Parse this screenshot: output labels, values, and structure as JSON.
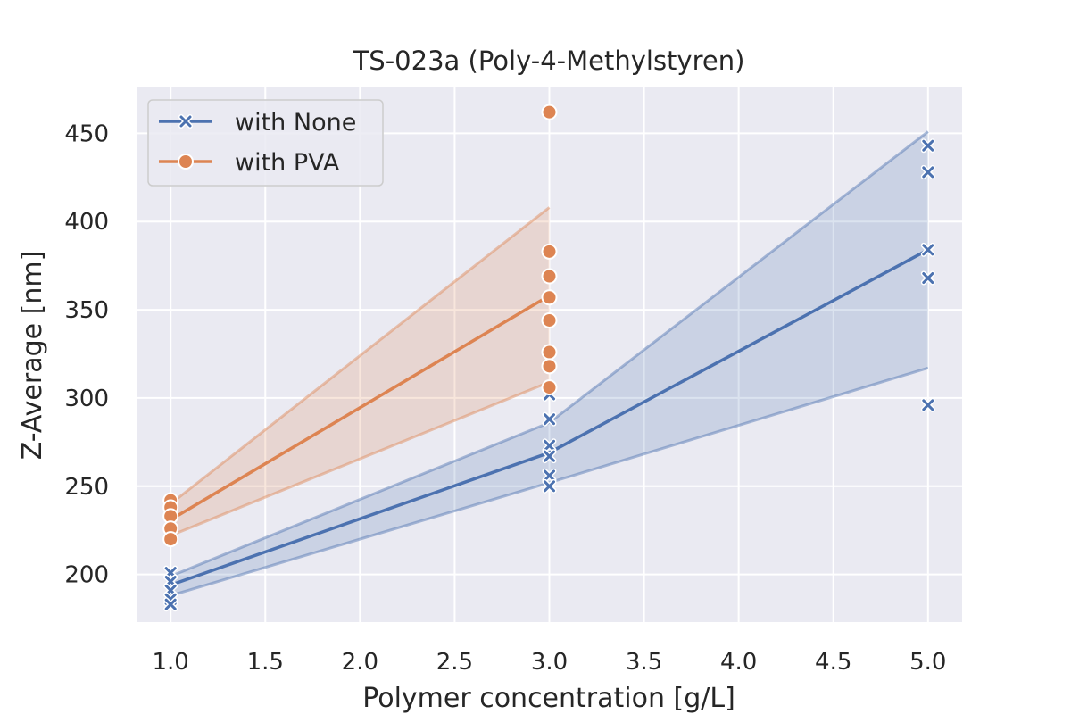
{
  "chart_data": {
    "type": "line",
    "title": "TS-023a (Poly-4-Methylstyren)",
    "xlabel": "Polymer concentration [g/L]",
    "ylabel": "Z-Average [nm]",
    "xlim": [
      0.82,
      5.18
    ],
    "ylim": [
      173,
      476
    ],
    "xticks": [
      "1.0",
      "1.5",
      "2.0",
      "2.5",
      "3.0",
      "3.5",
      "4.0",
      "4.5",
      "5.0"
    ],
    "yticks": [
      "200",
      "250",
      "300",
      "350",
      "400",
      "450"
    ],
    "grid": true,
    "legend_position": "top-left",
    "series": [
      {
        "name": "with None",
        "color": "#4c72b0",
        "marker": "x",
        "x": [
          1.0,
          3.0,
          5.0
        ],
        "mean": [
          194,
          269,
          384
        ],
        "ci_lower": [
          188,
          252,
          317
        ],
        "ci_upper": [
          199,
          286,
          451
        ],
        "points": [
          [
            1.0,
            201
          ],
          [
            1.0,
            196
          ],
          [
            1.0,
            191
          ],
          [
            1.0,
            186
          ],
          [
            1.0,
            183
          ],
          [
            3.0,
            302
          ],
          [
            3.0,
            288
          ],
          [
            3.0,
            273
          ],
          [
            3.0,
            267
          ],
          [
            3.0,
            256
          ],
          [
            3.0,
            250
          ],
          [
            5.0,
            443
          ],
          [
            5.0,
            428
          ],
          [
            5.0,
            384
          ],
          [
            5.0,
            368
          ],
          [
            5.0,
            296
          ]
        ]
      },
      {
        "name": "with PVA",
        "color": "#dd8452",
        "marker": "o",
        "x": [
          1.0,
          3.0
        ],
        "mean": [
          231,
          358
        ],
        "ci_lower": [
          222,
          309
        ],
        "ci_upper": [
          240,
          408
        ],
        "points": [
          [
            1.0,
            242
          ],
          [
            1.0,
            238
          ],
          [
            1.0,
            233
          ],
          [
            1.0,
            226
          ],
          [
            1.0,
            220
          ],
          [
            3.0,
            462
          ],
          [
            3.0,
            383
          ],
          [
            3.0,
            369
          ],
          [
            3.0,
            357
          ],
          [
            3.0,
            344
          ],
          [
            3.0,
            326
          ],
          [
            3.0,
            318
          ],
          [
            3.0,
            306
          ]
        ]
      }
    ]
  }
}
